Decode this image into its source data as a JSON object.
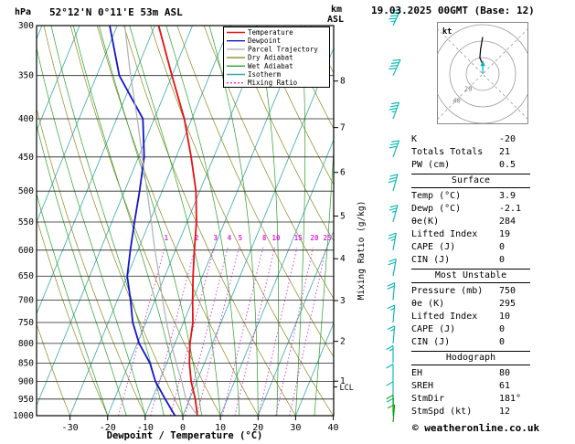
{
  "header": {
    "pressure_unit": "hPa",
    "station": "52°12'N 0°11'E 53m ASL",
    "km_label": "km",
    "asl_label": "ASL",
    "datetime": "19.03.2025 00GMT (Base: 12)"
  },
  "chart_data": {
    "type": "line",
    "title": "52°12'N 0°11'E 53m ASL",
    "xlabel": "Dewpoint / Temperature (°C)",
    "ylabel": "hPa",
    "x_ticks": [
      -30,
      -20,
      -10,
      0,
      10,
      20,
      30,
      40
    ],
    "pressure_ticks": [
      300,
      350,
      400,
      450,
      500,
      550,
      600,
      650,
      700,
      750,
      800,
      850,
      900,
      950,
      1000
    ],
    "pressure_range": [
      300,
      1000
    ],
    "km_ticks": [
      {
        "label": "1",
        "p": 899
      },
      {
        "label": "2",
        "p": 795
      },
      {
        "label": "3",
        "p": 701
      },
      {
        "label": "4",
        "p": 616
      },
      {
        "label": "5",
        "p": 540
      },
      {
        "label": "6",
        "p": 472
      },
      {
        "label": "7",
        "p": 411
      },
      {
        "label": "8",
        "p": 356
      }
    ],
    "lcl": {
      "label": "LCL",
      "pressure": 915
    },
    "mixing_ratio_values": [
      1,
      2,
      3,
      4,
      5,
      8,
      10,
      15,
      20,
      25
    ],
    "mixing_ratio_axis_label": "Mixing Ratio (g/kg)",
    "series": [
      {
        "name": "Temperature",
        "color": "#e81010",
        "width": 1.8,
        "pressure": [
          1000,
          950,
          900,
          850,
          800,
          750,
          700,
          650,
          600,
          550,
          500,
          450,
          400,
          350,
          300
        ],
        "values": [
          3.9,
          1.5,
          -1.5,
          -4,
          -6,
          -7.5,
          -10,
          -12.5,
          -15,
          -17.5,
          -21,
          -26,
          -32,
          -40,
          -49
        ]
      },
      {
        "name": "Dewpoint",
        "color": "#1414cc",
        "width": 1.8,
        "pressure": [
          1000,
          950,
          900,
          850,
          800,
          750,
          700,
          650,
          600,
          550,
          500,
          450,
          400,
          350,
          300
        ],
        "values": [
          -2.1,
          -6.5,
          -11,
          -14.5,
          -19.5,
          -23.5,
          -26.5,
          -30,
          -32,
          -34,
          -36,
          -38.5,
          -43,
          -54,
          -62
        ]
      },
      {
        "name": "Parcel Trajectory",
        "color": "#b0b0b0",
        "width": 1.2,
        "pressure": [
          1000,
          950,
          900,
          850,
          800,
          750,
          700,
          650,
          600,
          550,
          500,
          450,
          400,
          350,
          300
        ],
        "values": [
          3.9,
          -1,
          -4,
          -7.5,
          -11,
          -14.5,
          -18,
          -21.5,
          -25.5,
          -29.5,
          -34,
          -39,
          -44.5,
          -51,
          -58
        ]
      }
    ],
    "legend": [
      {
        "label": "Temperature",
        "color": "#e81010",
        "style": "solid"
      },
      {
        "label": "Dewpoint",
        "color": "#1414cc",
        "style": "solid"
      },
      {
        "label": "Parcel Trajectory",
        "color": "#b0b0b0",
        "style": "solid"
      },
      {
        "label": "Dry Adiabat",
        "color": "#8a8a20",
        "style": "solid"
      },
      {
        "label": "Wet Adiabat",
        "color": "#28a028",
        "style": "solid"
      },
      {
        "label": "Isotherm",
        "color": "#3aa8a8",
        "style": "solid"
      },
      {
        "label": "Mixing Ratio",
        "color": "#e028e0",
        "style": "dotted"
      }
    ],
    "grid_colors": {
      "isobar": "#222222",
      "isotherm": "#3aa8a8",
      "dry_adiabat": "#8a8a20",
      "wet_adiabat": "#28a028",
      "mixing_ratio": "#e028e0"
    },
    "wind_barbs": [
      {
        "p": 300,
        "speed": 45,
        "dir": 205
      },
      {
        "p": 350,
        "speed": 40,
        "dir": 205
      },
      {
        "p": 400,
        "speed": 35,
        "dir": 200
      },
      {
        "p": 450,
        "speed": 30,
        "dir": 200
      },
      {
        "p": 500,
        "speed": 30,
        "dir": 195
      },
      {
        "p": 550,
        "speed": 25,
        "dir": 195
      },
      {
        "p": 600,
        "speed": 25,
        "dir": 190
      },
      {
        "p": 650,
        "speed": 20,
        "dir": 190
      },
      {
        "p": 700,
        "speed": 20,
        "dir": 185
      },
      {
        "p": 750,
        "speed": 15,
        "dir": 185
      },
      {
        "p": 800,
        "speed": 15,
        "dir": 185
      },
      {
        "p": 850,
        "speed": 15,
        "dir": 180
      },
      {
        "p": 900,
        "speed": 10,
        "dir": 180
      },
      {
        "p": 950,
        "speed": 10,
        "dir": 180
      },
      {
        "p": 1000,
        "speed": 12,
        "dir": 181
      }
    ],
    "wind_barb_color": "#00b4b4",
    "surface_barbs": [
      {
        "p": 990,
        "speed": 10,
        "dir": 180
      },
      {
        "p": 1020,
        "speed": 10,
        "dir": 185
      }
    ],
    "surface_barb_color": "#00a000"
  },
  "hodograph": {
    "unit_label": "kt",
    "rings_kt": [
      20,
      40,
      60
    ],
    "ring_labels": [
      "20",
      "40"
    ],
    "trace_uv": [
      [
        0.2,
        12
      ],
      [
        -1.3,
        14.9
      ],
      [
        -3.5,
        19.7
      ],
      [
        -2.6,
        29.9
      ],
      [
        0,
        45
      ]
    ],
    "storm": {
      "dir_deg": 181,
      "speed_kt": 12
    }
  },
  "table": {
    "rows_top": [
      {
        "label": "K",
        "value": "-20"
      },
      {
        "label": "Totals Totals",
        "value": "21"
      },
      {
        "label": "PW (cm)",
        "value": "0.5"
      }
    ],
    "sections": [
      {
        "title": "Surface",
        "rows": [
          {
            "label": "Temp (°C)",
            "value": "3.9"
          },
          {
            "label": "Dewp (°C)",
            "value": "-2.1"
          },
          {
            "label": "θe(K)",
            "value": "284"
          },
          {
            "label": "Lifted Index",
            "value": "19"
          },
          {
            "label": "CAPE (J)",
            "value": "0"
          },
          {
            "label": "CIN (J)",
            "value": "0"
          }
        ]
      },
      {
        "title": "Most Unstable",
        "rows": [
          {
            "label": "Pressure (mb)",
            "value": "750"
          },
          {
            "label": "θe (K)",
            "value": "295"
          },
          {
            "label": "Lifted Index",
            "value": "10"
          },
          {
            "label": "CAPE (J)",
            "value": "0"
          },
          {
            "label": "CIN (J)",
            "value": "0"
          }
        ]
      },
      {
        "title": "Hodograph",
        "rows": [
          {
            "label": "EH",
            "value": "80"
          },
          {
            "label": "SREH",
            "value": "61"
          },
          {
            "label": "StmDir",
            "value": "181°"
          },
          {
            "label": "StmSpd (kt)",
            "value": "12"
          }
        ]
      }
    ]
  },
  "footer": {
    "copyright": "© weatheronline.co.uk"
  }
}
